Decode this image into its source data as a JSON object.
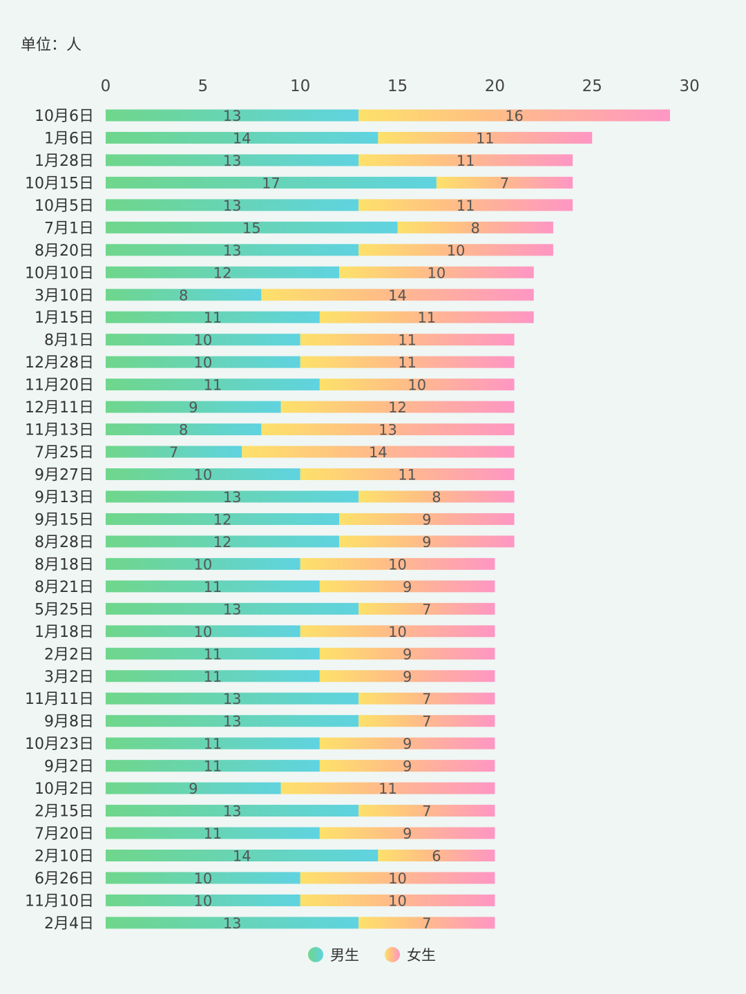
{
  "chart_data": {
    "type": "bar",
    "orientation": "horizontal",
    "stacked": true,
    "unit_label": "单位：人",
    "xlim": [
      0,
      30
    ],
    "xticks": [
      0,
      5,
      10,
      15,
      20,
      25,
      30
    ],
    "grid": false,
    "legend_position": "bottom-center",
    "categories": [
      "10月6日",
      "1月6日",
      "1月28日",
      "10月15日",
      "10月5日",
      "7月1日",
      "8月20日",
      "10月10日",
      "3月10日",
      "1月15日",
      "8月1日",
      "12月28日",
      "11月20日",
      "12月11日",
      "11月13日",
      "7月25日",
      "9月27日",
      "9月13日",
      "9月15日",
      "8月28日",
      "8月18日",
      "8月21日",
      "5月25日",
      "1月18日",
      "2月2日",
      "3月2日",
      "11月11日",
      "9月8日",
      "10月23日",
      "9月2日",
      "10月2日",
      "2月15日",
      "7月20日",
      "2月10日",
      "6月26日",
      "11月10日",
      "2月4日"
    ],
    "series": [
      {
        "name": "男生",
        "color_start": "#6fd68b",
        "color_end": "#5fd3e0",
        "values": [
          13,
          14,
          13,
          17,
          13,
          15,
          13,
          12,
          8,
          11,
          10,
          10,
          11,
          9,
          8,
          7,
          10,
          13,
          12,
          12,
          10,
          11,
          13,
          10,
          11,
          11,
          13,
          13,
          11,
          11,
          9,
          13,
          11,
          14,
          10,
          10,
          13
        ]
      },
      {
        "name": "女生",
        "color_start": "#fde16a",
        "color_end": "#ff96c4",
        "values": [
          16,
          11,
          11,
          7,
          11,
          8,
          10,
          10,
          14,
          11,
          11,
          11,
          10,
          12,
          13,
          14,
          11,
          8,
          9,
          9,
          10,
          9,
          7,
          10,
          9,
          9,
          7,
          7,
          9,
          9,
          11,
          7,
          9,
          6,
          10,
          10,
          7
        ]
      }
    ]
  }
}
